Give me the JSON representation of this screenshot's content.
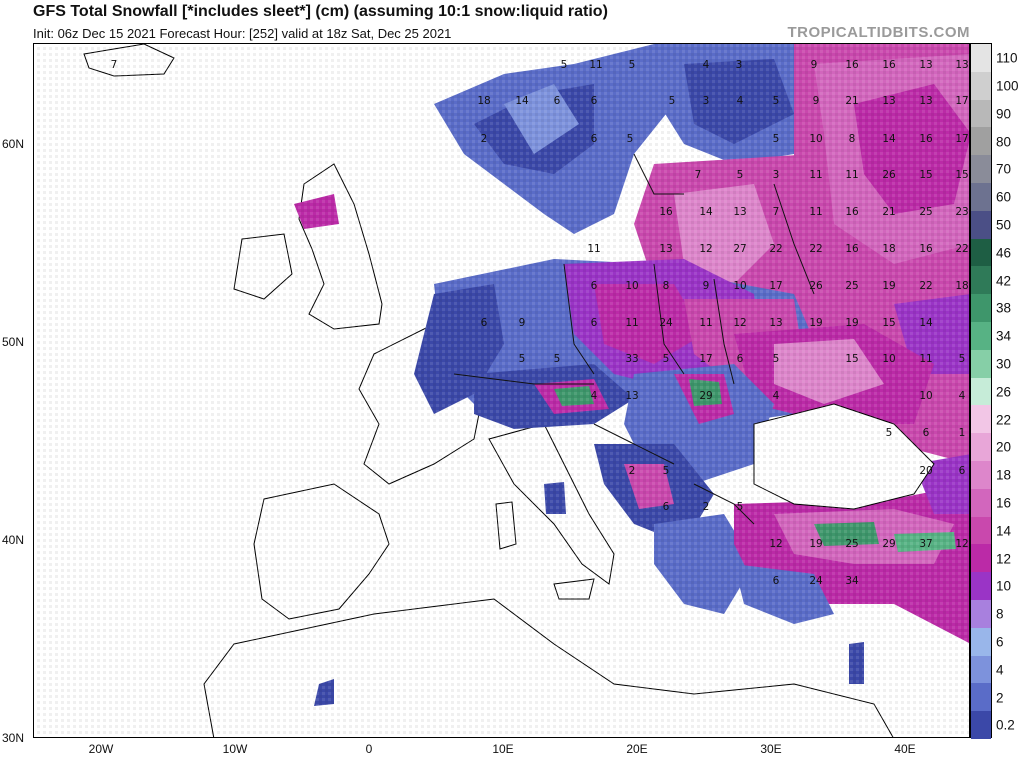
{
  "header": {
    "title": "GFS Total Snowfall [*includes sleet*] (cm) (assuming 10:1 snow:liquid ratio)",
    "subtitle": "Init: 06z Dec 15 2021   Forecast Hour: [252]   valid at 18z Sat, Dec 25 2021",
    "brand": "TROPICALTIDBITS.COM"
  },
  "axes": {
    "lat_labels": [
      "60N",
      "50N",
      "40N",
      "30N"
    ],
    "lon_labels": [
      "20W",
      "10W",
      "0",
      "10E",
      "20E",
      "30E",
      "40E"
    ]
  },
  "legend": {
    "unit": "cm",
    "levels": [
      {
        "label": "110",
        "color": "#e4e4e4"
      },
      {
        "label": "100",
        "color": "#cfcfcf"
      },
      {
        "label": "90",
        "color": "#b8b8b8"
      },
      {
        "label": "80",
        "color": "#a0a0a0"
      },
      {
        "label": "70",
        "color": "#8a8c99"
      },
      {
        "label": "60",
        "color": "#6d7290"
      },
      {
        "label": "50",
        "color": "#4b4f86"
      },
      {
        "label": "46",
        "color": "#1e5e44"
      },
      {
        "label": "42",
        "color": "#2f7a58"
      },
      {
        "label": "38",
        "color": "#3e966b"
      },
      {
        "label": "34",
        "color": "#57b284"
      },
      {
        "label": "30",
        "color": "#86cfa7"
      },
      {
        "label": "26",
        "color": "#c6ecd8"
      },
      {
        "label": "22",
        "color": "#f2c6e6"
      },
      {
        "label": "20",
        "color": "#e8a6d8"
      },
      {
        "label": "18",
        "color": "#dd86cb"
      },
      {
        "label": "16",
        "color": "#d266bd"
      },
      {
        "label": "14",
        "color": "#c948ad"
      },
      {
        "label": "12",
        "color": "#bb2aa7"
      },
      {
        "label": "10",
        "color": "#9a34c6"
      },
      {
        "label": "8",
        "color": "#a880de"
      },
      {
        "label": "6",
        "color": "#99b6ea"
      },
      {
        "label": "4",
        "color": "#7d92dc"
      },
      {
        "label": "2",
        "color": "#5a6cc8"
      },
      {
        "label": "0.2",
        "color": "#3b48a8"
      }
    ]
  },
  "map": {
    "snow_labels": [
      {
        "t": "7"
      },
      {
        "t": "5"
      },
      {
        "t": "11"
      },
      {
        "t": "5"
      },
      {
        "t": "4"
      },
      {
        "t": "3"
      },
      {
        "t": "9"
      },
      {
        "t": "16"
      },
      {
        "t": "16"
      },
      {
        "t": "13"
      },
      {
        "t": "13"
      },
      {
        "t": "18"
      },
      {
        "t": "14"
      },
      {
        "t": "6"
      },
      {
        "t": "6"
      },
      {
        "t": "5"
      },
      {
        "t": "3"
      },
      {
        "t": "4"
      },
      {
        "t": "5"
      },
      {
        "t": "9"
      },
      {
        "t": "21"
      },
      {
        "t": "13"
      },
      {
        "t": "13"
      },
      {
        "t": "17"
      },
      {
        "t": "2"
      },
      {
        "t": "6"
      },
      {
        "t": "5"
      },
      {
        "t": "5"
      },
      {
        "t": "10"
      },
      {
        "t": "8"
      },
      {
        "t": "14"
      },
      {
        "t": "16"
      },
      {
        "t": "17"
      },
      {
        "t": "7"
      },
      {
        "t": "5"
      },
      {
        "t": "3"
      },
      {
        "t": "11"
      },
      {
        "t": "11"
      },
      {
        "t": "26"
      },
      {
        "t": "15"
      },
      {
        "t": "15"
      },
      {
        "t": "16"
      },
      {
        "t": "14"
      },
      {
        "t": "13"
      },
      {
        "t": "7"
      },
      {
        "t": "11"
      },
      {
        "t": "16"
      },
      {
        "t": "21"
      },
      {
        "t": "25"
      },
      {
        "t": "23"
      },
      {
        "t": "11"
      },
      {
        "t": "13"
      },
      {
        "t": "12"
      },
      {
        "t": "27"
      },
      {
        "t": "22"
      },
      {
        "t": "22"
      },
      {
        "t": "16"
      },
      {
        "t": "18"
      },
      {
        "t": "16"
      },
      {
        "t": "22"
      },
      {
        "t": "6"
      },
      {
        "t": "10"
      },
      {
        "t": "8"
      },
      {
        "t": "9"
      },
      {
        "t": "10"
      },
      {
        "t": "17"
      },
      {
        "t": "26"
      },
      {
        "t": "25"
      },
      {
        "t": "19"
      },
      {
        "t": "22"
      },
      {
        "t": "18"
      },
      {
        "t": "6"
      },
      {
        "t": "9"
      },
      {
        "t": "6"
      },
      {
        "t": "11"
      },
      {
        "t": "24"
      },
      {
        "t": "11"
      },
      {
        "t": "12"
      },
      {
        "t": "13"
      },
      {
        "t": "19"
      },
      {
        "t": "19"
      },
      {
        "t": "15"
      },
      {
        "t": "14"
      },
      {
        "t": "5"
      },
      {
        "t": "5"
      },
      {
        "t": "33"
      },
      {
        "t": "5"
      },
      {
        "t": "17"
      },
      {
        "t": "6"
      },
      {
        "t": "5"
      },
      {
        "t": "15"
      },
      {
        "t": "10"
      },
      {
        "t": "11"
      },
      {
        "t": "5"
      },
      {
        "t": "4"
      },
      {
        "t": "13"
      },
      {
        "t": "29"
      },
      {
        "t": "4"
      },
      {
        "t": "10"
      },
      {
        "t": "4"
      },
      {
        "t": "5"
      },
      {
        "t": "6"
      },
      {
        "t": "1"
      },
      {
        "t": "2"
      },
      {
        "t": "5"
      },
      {
        "t": "20"
      },
      {
        "t": "6"
      },
      {
        "t": "6"
      },
      {
        "t": "2"
      },
      {
        "t": "5"
      },
      {
        "t": "12"
      },
      {
        "t": "19"
      },
      {
        "t": "25"
      },
      {
        "t": "29"
      },
      {
        "t": "37"
      },
      {
        "t": "12"
      },
      {
        "t": "6"
      },
      {
        "t": "24"
      },
      {
        "t": "34"
      }
    ]
  }
}
